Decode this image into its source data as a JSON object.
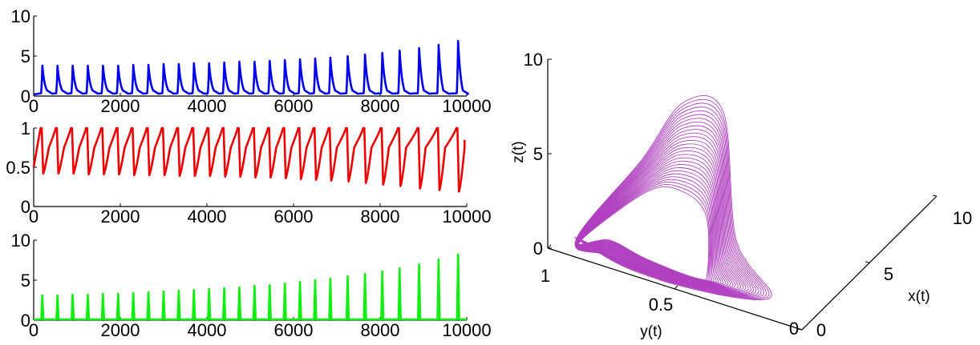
{
  "chart_data": [
    {
      "type": "line",
      "xlim": [
        0,
        10000
      ],
      "ylim": [
        0,
        10
      ],
      "xticks": [
        0,
        2000,
        4000,
        6000,
        8000,
        10000
      ],
      "yticks": [
        0,
        5,
        10
      ],
      "grid": false,
      "color": "#0000ee",
      "series": [
        {
          "x_start": 200,
          "x_end": 9900,
          "peaks": [
            {
              "x": 200,
              "y": 3.8
            },
            {
              "x": 550,
              "y": 3.8
            },
            {
              "x": 900,
              "y": 3.8
            },
            {
              "x": 1250,
              "y": 3.8
            },
            {
              "x": 1600,
              "y": 3.8
            },
            {
              "x": 1950,
              "y": 3.8
            },
            {
              "x": 2300,
              "y": 3.9
            },
            {
              "x": 2650,
              "y": 3.9
            },
            {
              "x": 3000,
              "y": 4.0
            },
            {
              "x": 3350,
              "y": 4.0
            },
            {
              "x": 3700,
              "y": 4.1
            },
            {
              "x": 4050,
              "y": 4.1
            },
            {
              "x": 4400,
              "y": 4.2
            },
            {
              "x": 4750,
              "y": 4.3
            },
            {
              "x": 5100,
              "y": 4.3
            },
            {
              "x": 5450,
              "y": 4.4
            },
            {
              "x": 5800,
              "y": 4.5
            },
            {
              "x": 6150,
              "y": 4.6
            },
            {
              "x": 6500,
              "y": 4.7
            },
            {
              "x": 6850,
              "y": 4.8
            },
            {
              "x": 7250,
              "y": 5.0
            },
            {
              "x": 7650,
              "y": 5.2
            },
            {
              "x": 8050,
              "y": 5.4
            },
            {
              "x": 8450,
              "y": 5.7
            },
            {
              "x": 8900,
              "y": 6.0
            },
            {
              "x": 9350,
              "y": 6.4
            },
            {
              "x": 9800,
              "y": 6.9
            }
          ],
          "baseline": 0.2
        }
      ]
    },
    {
      "type": "line",
      "xlim": [
        0,
        10000
      ],
      "ylim": [
        0,
        1
      ],
      "xticks": [
        0,
        2000,
        4000,
        6000,
        8000,
        10000
      ],
      "yticks": [
        0,
        0.5,
        1
      ],
      "grid": false,
      "color": "#ee0000",
      "series": [
        {
          "start": {
            "x": 0,
            "y": 0.5
          },
          "end": {
            "x": 9950,
            "y": 0.85
          },
          "cycles": [
            {
              "x": 200,
              "min": 0.42
            },
            {
              "x": 550,
              "min": 0.42
            },
            {
              "x": 900,
              "min": 0.42
            },
            {
              "x": 1250,
              "min": 0.41
            },
            {
              "x": 1600,
              "min": 0.41
            },
            {
              "x": 1950,
              "min": 0.41
            },
            {
              "x": 2300,
              "min": 0.4
            },
            {
              "x": 2650,
              "min": 0.4
            },
            {
              "x": 3000,
              "min": 0.4
            },
            {
              "x": 3350,
              "min": 0.39
            },
            {
              "x": 3700,
              "min": 0.39
            },
            {
              "x": 4050,
              "min": 0.39
            },
            {
              "x": 4400,
              "min": 0.38
            },
            {
              "x": 4750,
              "min": 0.38
            },
            {
              "x": 5100,
              "min": 0.37
            },
            {
              "x": 5450,
              "min": 0.37
            },
            {
              "x": 5800,
              "min": 0.36
            },
            {
              "x": 6150,
              "min": 0.35
            },
            {
              "x": 6500,
              "min": 0.34
            },
            {
              "x": 6850,
              "min": 0.33
            },
            {
              "x": 7250,
              "min": 0.32
            },
            {
              "x": 7650,
              "min": 0.3
            },
            {
              "x": 8050,
              "min": 0.28
            },
            {
              "x": 8450,
              "min": 0.26
            },
            {
              "x": 8900,
              "min": 0.23
            },
            {
              "x": 9350,
              "min": 0.21
            },
            {
              "x": 9800,
              "min": 0.19
            }
          ]
        }
      ]
    },
    {
      "type": "line",
      "xlim": [
        0,
        10000
      ],
      "ylim": [
        0,
        10
      ],
      "xticks": [
        0,
        2000,
        4000,
        6000,
        8000,
        10000
      ],
      "yticks": [
        0,
        5,
        10
      ],
      "grid": false,
      "color": "#11ee11",
      "series": [
        {
          "peaks": [
            {
              "x": 200,
              "y": 3.1
            },
            {
              "x": 550,
              "y": 3.1
            },
            {
              "x": 900,
              "y": 3.2
            },
            {
              "x": 1250,
              "y": 3.2
            },
            {
              "x": 1600,
              "y": 3.3
            },
            {
              "x": 1950,
              "y": 3.3
            },
            {
              "x": 2300,
              "y": 3.4
            },
            {
              "x": 2650,
              "y": 3.5
            },
            {
              "x": 3000,
              "y": 3.6
            },
            {
              "x": 3350,
              "y": 3.7
            },
            {
              "x": 3700,
              "y": 3.8
            },
            {
              "x": 4050,
              "y": 3.9
            },
            {
              "x": 4400,
              "y": 4.0
            },
            {
              "x": 4750,
              "y": 4.1
            },
            {
              "x": 5100,
              "y": 4.3
            },
            {
              "x": 5450,
              "y": 4.4
            },
            {
              "x": 5800,
              "y": 4.6
            },
            {
              "x": 6150,
              "y": 4.8
            },
            {
              "x": 6500,
              "y": 5.0
            },
            {
              "x": 6850,
              "y": 5.2
            },
            {
              "x": 7250,
              "y": 5.5
            },
            {
              "x": 7650,
              "y": 5.8
            },
            {
              "x": 8050,
              "y": 6.1
            },
            {
              "x": 8450,
              "y": 6.5
            },
            {
              "x": 8900,
              "y": 7.0
            },
            {
              "x": 9350,
              "y": 7.6
            },
            {
              "x": 9800,
              "y": 8.2
            }
          ],
          "baseline": 0.1
        }
      ]
    },
    {
      "type": "line3d",
      "xlabel": "x(t)",
      "ylabel": "y(t)",
      "zlabel": "z(t)",
      "xlim": [
        0,
        10
      ],
      "ylim": [
        0,
        1
      ],
      "zlim": [
        0,
        10
      ],
      "xticks": [
        0,
        5,
        10
      ],
      "yticks": [
        0,
        0.5,
        1
      ],
      "zticks": [
        0,
        5,
        10
      ],
      "grid": false,
      "color": "#b040c0",
      "loops": {
        "count": 28,
        "inner_peak_z": 3.0,
        "outer_peak_z": 7.6
      }
    }
  ]
}
